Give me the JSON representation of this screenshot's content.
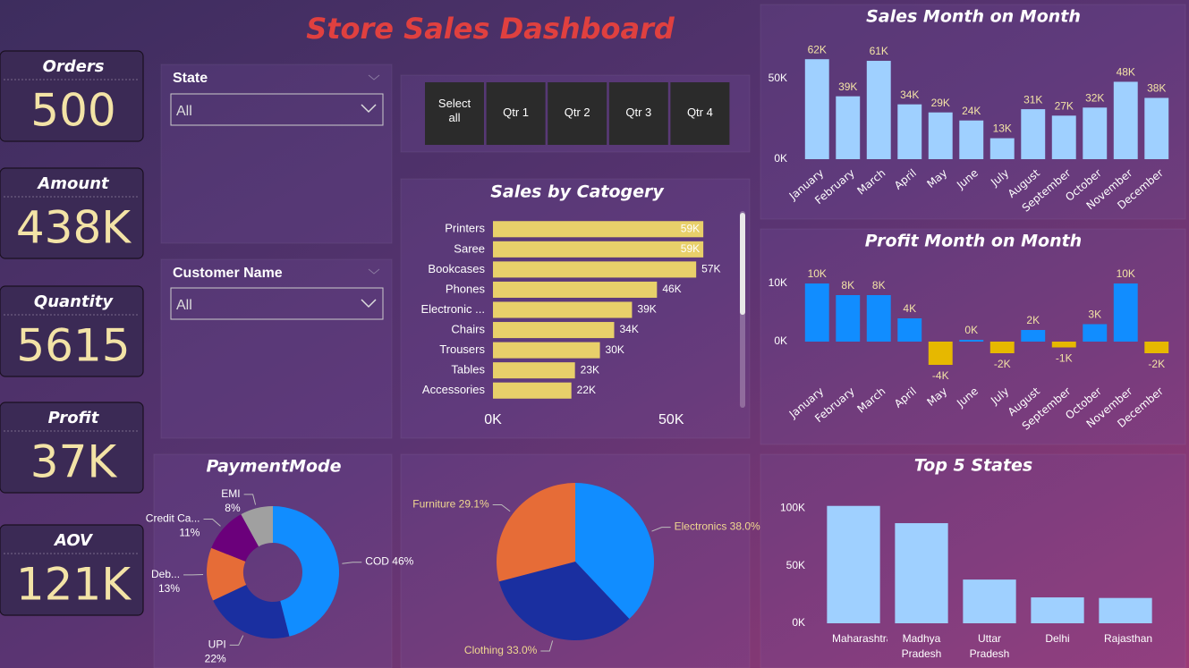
{
  "title": "Store Sales Dashboard",
  "kpis": [
    {
      "label": "Orders",
      "value": "500"
    },
    {
      "label": "Amount",
      "value": "438K"
    },
    {
      "label": "Quantity",
      "value": "5615"
    },
    {
      "label": "Profit",
      "value": "37K"
    },
    {
      "label": "AOV",
      "value": "121K"
    }
  ],
  "slicers": [
    {
      "label": "State",
      "selected": "All"
    },
    {
      "label": "Customer Name",
      "selected": "All"
    }
  ],
  "quarter_buttons": [
    "Select all",
    "Qtr 1",
    "Qtr 2",
    "Qtr 3",
    "Qtr 4"
  ],
  "chart_data": [
    {
      "type": "bar",
      "title": "Sales Month on Month",
      "categories": [
        "January",
        "February",
        "March",
        "April",
        "May",
        "June",
        "July",
        "August",
        "September",
        "October",
        "November",
        "December"
      ],
      "values": [
        62000,
        39000,
        61000,
        34000,
        29000,
        24000,
        13000,
        31000,
        27000,
        32000,
        48000,
        38000
      ],
      "value_labels": [
        "62K",
        "39K",
        "61K",
        "34K",
        "29K",
        "24K",
        "13K",
        "31K",
        "27K",
        "32K",
        "48K",
        "38K"
      ],
      "color": "#9fd0ff",
      "ylim": [
        0,
        66000
      ],
      "yticks": [
        {
          "value": 0,
          "label": "0K"
        },
        {
          "value": 50000,
          "label": "50K"
        }
      ]
    },
    {
      "type": "bar",
      "title": "Profit Month on Month",
      "categories": [
        "January",
        "February",
        "March",
        "April",
        "May",
        "June",
        "July",
        "August",
        "September",
        "October",
        "November",
        "December"
      ],
      "values": [
        10000,
        8000,
        8000,
        4000,
        -4000,
        300,
        -2000,
        2000,
        -1000,
        3000,
        10000,
        -2000
      ],
      "value_labels": [
        "10K",
        "8K",
        "8K",
        "4K",
        "-4K",
        "0K",
        "-2K",
        "2K",
        "-1K",
        "3K",
        "10K",
        "-2K"
      ],
      "color": "#118dff",
      "negative_color": "#e6b800",
      "ylim": [
        -5000,
        13000
      ],
      "yticks": [
        {
          "value": 0,
          "label": "0K"
        },
        {
          "value": 10000,
          "label": "10K"
        }
      ]
    },
    {
      "type": "bar",
      "orientation": "horizontal",
      "title": "Sales by Catogery",
      "categories": [
        "Printers",
        "Saree",
        "Bookcases",
        "Phones",
        "Electronic ...",
        "Chairs",
        "Trousers",
        "Tables",
        "Accessories"
      ],
      "values": [
        59000,
        59000,
        57000,
        46000,
        39000,
        34000,
        30000,
        23000,
        22000
      ],
      "value_labels": [
        "59K",
        "59K",
        "57K",
        "46K",
        "39K",
        "34K",
        "30K",
        "23K",
        "22K"
      ],
      "color": "#e8d06a",
      "xlim": [
        0,
        67500
      ],
      "xticks": [
        {
          "value": 0,
          "label": "0K"
        },
        {
          "value": 50000,
          "label": "50K"
        }
      ]
    },
    {
      "type": "donut",
      "title": "PaymentMode",
      "categories": [
        "COD",
        "UPI",
        "Deb...",
        "Credit Ca...",
        "EMI"
      ],
      "values": [
        46,
        22,
        13,
        11,
        8
      ],
      "value_labels": [
        "46%",
        "22%",
        "13%",
        "11%",
        "8%"
      ],
      "colors": [
        "#118dff",
        "#1a2fa0",
        "#e66c37",
        "#6b007b",
        "#a0a0a0"
      ]
    },
    {
      "type": "pie",
      "categories": [
        "Electronics",
        "Clothing",
        "Furniture"
      ],
      "values": [
        38.0,
        33.0,
        29.1
      ],
      "value_labels": [
        "38.0%",
        "33.0%",
        "29.1%"
      ],
      "colors": [
        "#118dff",
        "#1a2fa0",
        "#e66c37"
      ]
    },
    {
      "type": "bar",
      "title": "Top 5 States",
      "categories": [
        "Maharashtra",
        "Madhya Pradesh",
        "Uttar Pradesh",
        "Delhi",
        "Rajasthan"
      ],
      "values": [
        102000,
        87000,
        38000,
        22500,
        22000
      ],
      "color": "#9fd0ff",
      "ylim": [
        0,
        115000
      ],
      "yticks": [
        {
          "value": 0,
          "label": "0K"
        },
        {
          "value": 50000,
          "label": "50K"
        },
        {
          "value": 100000,
          "label": "100K"
        }
      ]
    }
  ]
}
